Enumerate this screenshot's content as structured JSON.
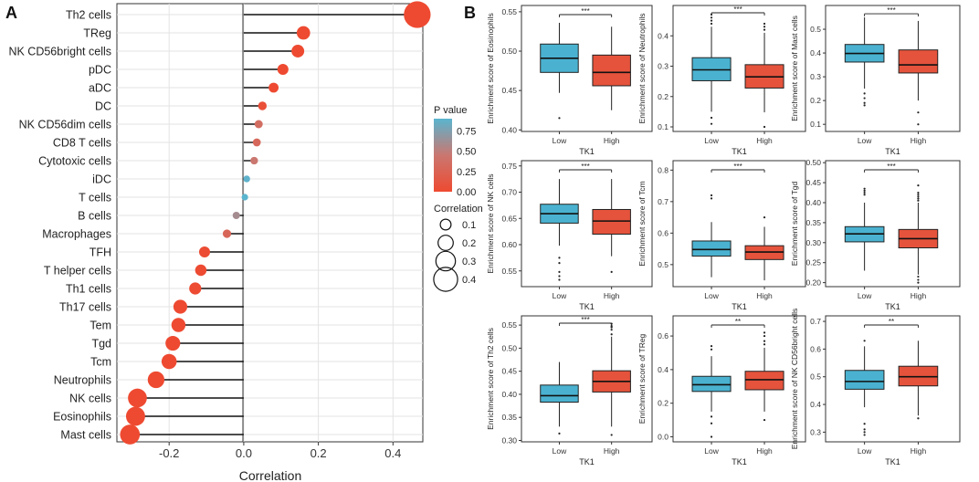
{
  "panel_labels": {
    "a": "A",
    "b": "B"
  },
  "colors": {
    "low": "#4ab2d0",
    "high": "#e5533c",
    "axis": "#333333",
    "grid": "#e3e3e3",
    "grad_top": "#5ab5cf",
    "grad_mid": "#ca7770",
    "grad_bottom": "#ee4a31"
  },
  "chart_data": [
    {
      "type": "scatter",
      "subtype": "lollipop",
      "title": "",
      "xlabel": "Correlation",
      "ylabel": "",
      "xlim": [
        -0.34,
        0.48
      ],
      "xticks": [
        -0.2,
        0.0,
        0.2,
        0.4
      ],
      "xtick_labels": [
        "-0.2",
        "0.0",
        "0.2",
        "0.4"
      ],
      "grid": true,
      "categories": [
        "Th2 cells",
        "TReg",
        "NK CD56bright cells",
        "pDC",
        "aDC",
        "DC",
        "NK CD56dim cells",
        "CD8 T cells",
        "Cytotoxic cells",
        "iDC",
        "T cells",
        "B cells",
        "Macrophages",
        "TFH",
        "T helper cells",
        "Th1 cells",
        "Th17 cells",
        "Tem",
        "Tgd",
        "Tcm",
        "Neutrophils",
        "NK cells",
        "Eosinophils",
        "Mast cells"
      ],
      "correlation": [
        0.465,
        0.16,
        0.145,
        0.105,
        0.08,
        0.05,
        0.04,
        0.035,
        0.028,
        0.008,
        0.003,
        -0.02,
        -0.045,
        -0.105,
        -0.115,
        -0.13,
        -0.17,
        -0.175,
        -0.19,
        -0.2,
        -0.235,
        -0.285,
        -0.29,
        -0.305
      ],
      "p_value": [
        0.0,
        0.0,
        0.0,
        0.0,
        0.0,
        0.05,
        0.35,
        0.3,
        0.45,
        0.88,
        0.92,
        0.6,
        0.28,
        0.02,
        0.01,
        0.01,
        0.0,
        0.0,
        0.0,
        0.0,
        0.0,
        0.0,
        0.0,
        0.0
      ],
      "legend_pvalue": {
        "title": "P value",
        "ticks": [
          "0.75",
          "0.50",
          "0.25",
          "0.00"
        ]
      },
      "legend_size": {
        "title": "Correlation",
        "values": [
          "0.1",
          "0.2",
          "0.3",
          "0.4"
        ]
      }
    },
    {
      "type": "box",
      "panels": [
        {
          "ylabel": "Enrichment score of Eosinophils",
          "xlabel": "TK1",
          "categories": [
            "Low",
            "High"
          ],
          "ylim": [
            0.398,
            0.558
          ],
          "ticks": [
            0.4,
            0.45,
            0.5,
            0.55
          ],
          "tick_labels": [
            "0.40",
            "0.45",
            "0.50",
            "0.55"
          ],
          "signif": "***",
          "boxes": [
            {
              "whislo": 0.447,
              "q1": 0.473,
              "med": 0.491,
              "q3": 0.509,
              "whishi": 0.536,
              "fliers": [
                0.415
              ]
            },
            {
              "whislo": 0.425,
              "q1": 0.456,
              "med": 0.473,
              "q3": 0.495,
              "whishi": 0.531,
              "fliers": []
            }
          ]
        },
        {
          "ylabel": "Enrichment score of Neutrophils",
          "xlabel": "TK1",
          "categories": [
            "Low",
            "High"
          ],
          "ylim": [
            0.085,
            0.5
          ],
          "ticks": [
            0.1,
            0.2,
            0.3,
            0.4
          ],
          "tick_labels": [
            "0.1",
            "0.2",
            "0.3",
            "0.4"
          ],
          "signif": "***",
          "boxes": [
            {
              "whislo": 0.15,
              "q1": 0.252,
              "med": 0.288,
              "q3": 0.328,
              "whishi": 0.43,
              "fliers": [
                0.44,
                0.45,
                0.46,
                0.47,
                0.13,
                0.11
              ]
            },
            {
              "whislo": 0.148,
              "q1": 0.228,
              "med": 0.265,
              "q3": 0.305,
              "whishi": 0.41,
              "fliers": [
                0.42,
                0.43,
                0.44,
                0.1
              ]
            }
          ]
        },
        {
          "ylabel": "Enrichment score of Mast cells",
          "xlabel": "TK1",
          "categories": [
            "Low",
            "High"
          ],
          "ylim": [
            0.07,
            0.6
          ],
          "ticks": [
            0.1,
            0.2,
            0.3,
            0.4,
            0.5
          ],
          "tick_labels": [
            "0.1",
            "0.2",
            "0.3",
            "0.4",
            "0.5"
          ],
          "signif": "***",
          "boxes": [
            {
              "whislo": 0.25,
              "q1": 0.362,
              "med": 0.398,
              "q3": 0.436,
              "whishi": 0.55,
              "fliers": [
                0.23,
                0.21,
                0.19,
                0.18
              ]
            },
            {
              "whislo": 0.2,
              "q1": 0.316,
              "med": 0.35,
              "q3": 0.413,
              "whishi": 0.535,
              "fliers": [
                0.15,
                0.1
              ]
            }
          ]
        },
        {
          "ylabel": "Enrichment score of NK cells",
          "xlabel": "TK1",
          "categories": [
            "Low",
            "High"
          ],
          "ylim": [
            0.52,
            0.76
          ],
          "ticks": [
            0.55,
            0.6,
            0.65,
            0.7,
            0.75
          ],
          "tick_labels": [
            "0.55",
            "0.60",
            "0.65",
            "0.70",
            "0.75"
          ],
          "signif": "***",
          "boxes": [
            {
              "whislo": 0.598,
              "q1": 0.641,
              "med": 0.659,
              "q3": 0.677,
              "whishi": 0.725,
              "fliers": [
                0.575,
                0.565,
                0.548,
                0.54,
                0.533
              ]
            },
            {
              "whislo": 0.578,
              "q1": 0.62,
              "med": 0.645,
              "q3": 0.667,
              "whishi": 0.725,
              "fliers": [
                0.548
              ]
            }
          ]
        },
        {
          "ylabel": "Enrichment score of Tcm",
          "xlabel": "TK1",
          "categories": [
            "Low",
            "High"
          ],
          "ylim": [
            0.43,
            0.83
          ],
          "ticks": [
            0.5,
            0.6,
            0.7,
            0.8
          ],
          "tick_labels": [
            "0.5",
            "0.6",
            "0.7",
            "0.8"
          ],
          "signif": "***",
          "boxes": [
            {
              "whislo": 0.46,
              "q1": 0.527,
              "med": 0.548,
              "q3": 0.575,
              "whishi": 0.635,
              "fliers": [
                0.71,
                0.72
              ]
            },
            {
              "whislo": 0.45,
              "q1": 0.516,
              "med": 0.54,
              "q3": 0.56,
              "whishi": 0.62,
              "fliers": [
                0.65
              ]
            }
          ]
        },
        {
          "ylabel": "Enrichment score of Tgd",
          "xlabel": "TK1",
          "categories": [
            "Low",
            "High"
          ],
          "ylim": [
            0.19,
            0.505
          ],
          "ticks": [
            0.2,
            0.25,
            0.3,
            0.35,
            0.4,
            0.45,
            0.5
          ],
          "tick_labels": [
            "0.20",
            "0.25",
            "0.30",
            "0.35",
            "0.40",
            "0.45",
            "0.50"
          ],
          "signif": "***",
          "boxes": [
            {
              "whislo": 0.23,
              "q1": 0.302,
              "med": 0.322,
              "q3": 0.34,
              "whishi": 0.4,
              "fliers": [
                0.42,
                0.425,
                0.43,
                0.435
              ]
            },
            {
              "whislo": 0.22,
              "q1": 0.287,
              "med": 0.31,
              "q3": 0.333,
              "whishi": 0.4,
              "fliers": [
                0.405,
                0.41,
                0.415,
                0.42,
                0.425,
                0.443,
                0.215,
                0.207,
                0.2
              ]
            }
          ]
        },
        {
          "ylabel": "Enrichment score of Th2 cells",
          "xlabel": "TK1",
          "categories": [
            "Low",
            "High"
          ],
          "ylim": [
            0.297,
            0.57
          ],
          "ticks": [
            0.3,
            0.35,
            0.4,
            0.45,
            0.5,
            0.55
          ],
          "tick_labels": [
            "0.30",
            "0.35",
            "0.40",
            "0.45",
            "0.50",
            "0.55"
          ],
          "signif": "***",
          "boxes": [
            {
              "whislo": 0.33,
              "q1": 0.383,
              "med": 0.397,
              "q3": 0.42,
              "whishi": 0.47,
              "fliers": [
                0.315
              ]
            },
            {
              "whislo": 0.33,
              "q1": 0.405,
              "med": 0.428,
              "q3": 0.451,
              "whishi": 0.525,
              "fliers": [
                0.53,
                0.54,
                0.545,
                0.548,
                0.553,
                0.312
              ]
            }
          ]
        },
        {
          "ylabel": "Enrichment score of TReg",
          "xlabel": "TK1",
          "categories": [
            "Low",
            "High"
          ],
          "ylim": [
            -0.03,
            0.72
          ],
          "ticks": [
            0.0,
            0.2,
            0.4,
            0.6
          ],
          "tick_labels": [
            "0.0",
            "0.2",
            "0.4",
            "0.6"
          ],
          "signif": "**",
          "boxes": [
            {
              "whislo": 0.15,
              "q1": 0.27,
              "med": 0.31,
              "q3": 0.36,
              "whishi": 0.48,
              "fliers": [
                0.52,
                0.54,
                0.12,
                0.08,
                0.0
              ]
            },
            {
              "whislo": 0.15,
              "q1": 0.28,
              "med": 0.34,
              "q3": 0.39,
              "whishi": 0.53,
              "fliers": [
                0.55,
                0.57,
                0.6,
                0.62,
                0.1
              ]
            }
          ]
        },
        {
          "ylabel": "Enrichment score of NK CD56bright cells",
          "xlabel": "TK1",
          "categories": [
            "Low",
            "High"
          ],
          "ylim": [
            0.265,
            0.72
          ],
          "ticks": [
            0.3,
            0.4,
            0.5,
            0.6,
            0.7
          ],
          "tick_labels": [
            "0.3",
            "0.4",
            "0.5",
            "0.6",
            "0.7"
          ],
          "signif": "**",
          "boxes": [
            {
              "whislo": 0.39,
              "q1": 0.455,
              "med": 0.483,
              "q3": 0.523,
              "whishi": 0.61,
              "fliers": [
                0.63,
                0.33,
                0.31,
                0.3,
                0.29
              ]
            },
            {
              "whislo": 0.36,
              "q1": 0.467,
              "med": 0.5,
              "q3": 0.538,
              "whishi": 0.63,
              "fliers": [
                0.35
              ]
            }
          ]
        }
      ]
    }
  ]
}
